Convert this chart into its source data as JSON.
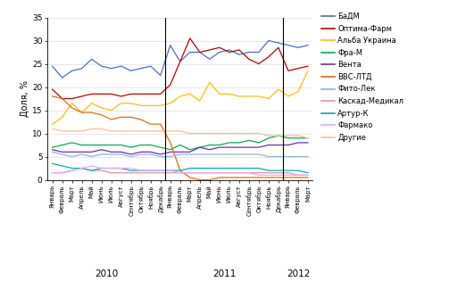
{
  "series": [
    {
      "name": "БаДМ",
      "color": "#4472C4",
      "values": [
        24.5,
        22.0,
        23.5,
        24.0,
        26.0,
        24.5,
        24.0,
        24.5,
        23.5,
        24.0,
        24.5,
        22.5,
        29.0,
        25.5,
        27.5,
        27.5,
        26.0,
        27.5,
        28.0,
        27.0,
        27.5,
        27.5,
        30.0,
        29.5,
        29.0,
        28.5,
        29.0
      ]
    },
    {
      "name": "Оптима-Фарм",
      "color": "#C00000",
      "values": [
        19.5,
        17.5,
        17.5,
        18.0,
        18.5,
        18.5,
        18.5,
        18.0,
        18.5,
        18.5,
        18.5,
        18.5,
        20.5,
        25.5,
        30.5,
        27.5,
        28.0,
        28.5,
        27.5,
        28.0,
        26.0,
        25.0,
        26.5,
        28.5,
        23.5,
        24.0,
        24.5
      ]
    },
    {
      "name": "Альба Украина",
      "color": "#FFC000",
      "values": [
        12.0,
        13.5,
        16.5,
        14.5,
        16.5,
        15.5,
        15.0,
        16.5,
        16.5,
        16.0,
        16.0,
        16.0,
        16.5,
        18.0,
        18.5,
        17.0,
        21.0,
        18.5,
        18.5,
        18.0,
        18.0,
        18.0,
        17.5,
        19.5,
        18.0,
        19.0,
        23.5
      ]
    },
    {
      "name": "Фра-М",
      "color": "#00B050",
      "values": [
        7.0,
        7.5,
        8.0,
        7.5,
        7.5,
        7.5,
        7.5,
        7.5,
        7.0,
        7.5,
        7.5,
        7.0,
        6.5,
        7.5,
        6.5,
        7.0,
        7.5,
        7.5,
        8.0,
        8.0,
        8.5,
        8.0,
        9.0,
        9.5,
        9.0,
        9.0,
        9.0
      ]
    },
    {
      "name": "Вента",
      "color": "#7030A0",
      "values": [
        6.5,
        6.0,
        6.0,
        6.0,
        6.0,
        6.5,
        6.0,
        6.0,
        5.5,
        6.0,
        6.0,
        5.5,
        6.0,
        6.0,
        6.0,
        7.0,
        6.5,
        7.0,
        7.0,
        7.0,
        7.0,
        7.0,
        7.5,
        7.5,
        7.5,
        8.0,
        8.0
      ]
    },
    {
      "name": "ВВС-ЛТД",
      "color": "#E36C09",
      "values": [
        18.0,
        17.5,
        15.5,
        14.5,
        14.5,
        14.0,
        13.0,
        13.5,
        13.5,
        13.0,
        12.0,
        12.0,
        8.0,
        2.0,
        0.5,
        0.0,
        0.0,
        0.5,
        0.5,
        0.5,
        0.5,
        0.5,
        0.5,
        0.5,
        0.5,
        0.5,
        0.5
      ]
    },
    {
      "name": "Фито-Лек",
      "color": "#8DB4E2",
      "values": [
        6.0,
        5.5,
        5.0,
        5.5,
        5.0,
        5.5,
        5.5,
        5.5,
        5.0,
        5.5,
        5.5,
        5.0,
        5.0,
        5.5,
        5.5,
        5.5,
        5.5,
        5.5,
        5.5,
        5.5,
        5.5,
        5.5,
        5.0,
        5.0,
        5.0,
        5.0,
        5.0
      ]
    },
    {
      "name": "Каскад-Медикал",
      "color": "#D99694",
      "values": [
        1.5,
        1.5,
        2.0,
        2.5,
        2.0,
        2.0,
        1.5,
        1.5,
        1.5,
        1.5,
        1.5,
        1.5,
        1.5,
        1.5,
        1.5,
        1.5,
        1.5,
        1.5,
        1.5,
        1.5,
        1.5,
        1.5,
        1.5,
        1.5,
        1.5,
        1.0,
        1.0
      ]
    },
    {
      "name": "Артур-К",
      "color": "#00B0B0",
      "values": [
        3.5,
        3.0,
        2.5,
        2.5,
        2.0,
        2.5,
        2.5,
        2.5,
        2.0,
        2.0,
        2.0,
        2.0,
        2.0,
        2.0,
        2.5,
        2.5,
        2.5,
        2.5,
        2.5,
        2.5,
        2.5,
        2.5,
        2.0,
        2.0,
        2.0,
        2.0,
        1.5
      ]
    },
    {
      "name": "Фармако",
      "color": "#E0AAFF",
      "values": [
        1.5,
        1.5,
        2.0,
        2.5,
        3.0,
        2.5,
        2.5,
        2.5,
        2.5,
        2.0,
        2.0,
        2.0,
        2.0,
        1.5,
        1.5,
        1.5,
        1.5,
        1.5,
        1.5,
        1.5,
        1.5,
        1.0,
        1.0,
        1.0,
        1.0,
        1.0,
        1.0
      ]
    },
    {
      "name": "Другие",
      "color": "#FAC090",
      "values": [
        11.0,
        10.5,
        10.5,
        10.5,
        11.0,
        11.0,
        10.5,
        10.5,
        10.5,
        10.5,
        10.5,
        10.5,
        10.5,
        10.5,
        10.0,
        10.0,
        10.0,
        10.0,
        10.0,
        10.0,
        10.0,
        10.0,
        9.5,
        9.5,
        9.5,
        9.5,
        9.0
      ]
    }
  ],
  "x_labels": [
    "Январь",
    "Февраль",
    "Март",
    "Апрель",
    "Май",
    "Июнь",
    "Июль",
    "Август",
    "Сентябрь",
    "Октябрь",
    "Ноябрь",
    "Декабрь",
    "Январь",
    "Февраль",
    "Март",
    "Апрель",
    "Май",
    "Июнь",
    "Июль",
    "Август",
    "Сентябрь",
    "Октябрь",
    "Ноябрь",
    "Декабрь",
    "Январь",
    "Февраль",
    "Март"
  ],
  "year_separators": [
    11.5,
    23.5
  ],
  "year_labels": [
    {
      "text": "2010",
      "x": 5.5
    },
    {
      "text": "2011",
      "x": 17.5
    },
    {
      "text": "2012",
      "x": 25.0
    }
  ],
  "ylabel": "Доля, %",
  "ylim": [
    0,
    35
  ],
  "yticks": [
    0,
    5,
    10,
    15,
    20,
    25,
    30,
    35
  ],
  "figsize": [
    5.31,
    3.25
  ],
  "dpi": 100
}
